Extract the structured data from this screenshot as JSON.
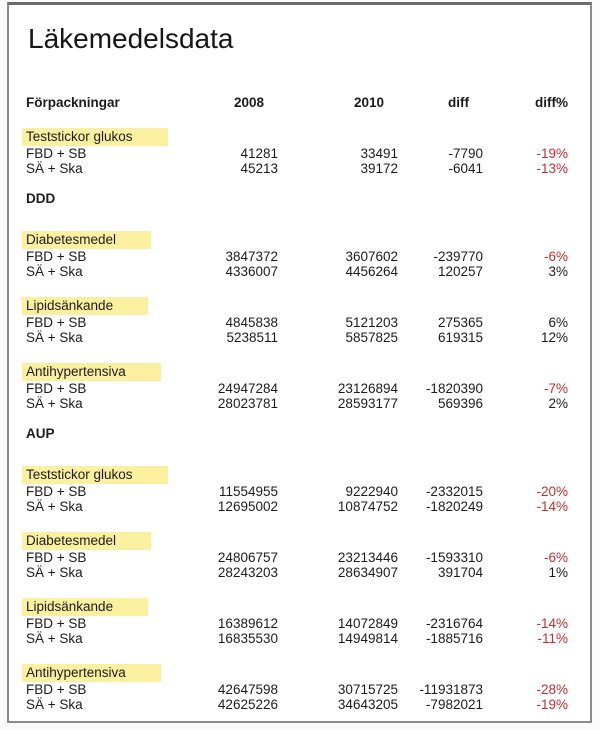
{
  "title": "Läkemedelsdata",
  "columns": {
    "category": "Förpackningar",
    "y2008": "2008",
    "y2010": "2010",
    "diff": "diff",
    "diffpct": "diff%"
  },
  "colors": {
    "highlight_yellow": "#FAF0A0",
    "negative_red": "#C22F32",
    "text": "#1C1C1C",
    "frame_border": "#8A8A8A"
  },
  "sections": [
    {
      "heading": "",
      "groups": [
        {
          "label": "Teststickor glukos",
          "rows": [
            {
              "label": "FBD + SB",
              "y2008": "41281",
              "y2010": "33491",
              "diff": "-7790",
              "diffpct": "-19%"
            },
            {
              "label": "SÄ + Ska",
              "y2008": "45213",
              "y2010": "39172",
              "diff": "-6041",
              "diffpct": "-13%"
            }
          ]
        }
      ]
    },
    {
      "heading": "DDD",
      "groups": [
        {
          "label": "Diabetesmedel",
          "rows": [
            {
              "label": "FBD + SB",
              "y2008": "3847372",
              "y2010": "3607602",
              "diff": "-239770",
              "diffpct": "-6%"
            },
            {
              "label": "SÄ + Ska",
              "y2008": "4336007",
              "y2010": "4456264",
              "diff": "120257",
              "diffpct": "3%"
            }
          ]
        },
        {
          "label": "Lipidsänkande",
          "rows": [
            {
              "label": "FBD + SB",
              "y2008": "4845838",
              "y2010": "5121203",
              "diff": "275365",
              "diffpct": "6%"
            },
            {
              "label": "SÄ + Ska",
              "y2008": "5238511",
              "y2010": "5857825",
              "diff": "619315",
              "diffpct": "12%"
            }
          ]
        },
        {
          "label": "Antihypertensiva",
          "rows": [
            {
              "label": "FBD + SB",
              "y2008": "24947284",
              "y2010": "23126894",
              "diff": "-1820390",
              "diffpct": "-7%"
            },
            {
              "label": "SÄ + Ska",
              "y2008": "28023781",
              "y2010": "28593177",
              "diff": "569396",
              "diffpct": "2%"
            }
          ]
        }
      ]
    },
    {
      "heading": "AUP",
      "groups": [
        {
          "label": "Teststickor glukos",
          "rows": [
            {
              "label": "FBD + SB",
              "y2008": "11554955",
              "y2010": "9222940",
              "diff": "-2332015",
              "diffpct": "-20%"
            },
            {
              "label": "SÄ + Ska",
              "y2008": "12695002",
              "y2010": "10874752",
              "diff": "-1820249",
              "diffpct": "-14%"
            }
          ]
        },
        {
          "label": "Diabetesmedel",
          "rows": [
            {
              "label": "FBD + SB",
              "y2008": "24806757",
              "y2010": "23213446",
              "diff": "-1593310",
              "diffpct": "-6%"
            },
            {
              "label": "SÄ + Ska",
              "y2008": "28243203",
              "y2010": "28634907",
              "diff": "391704",
              "diffpct": "1%"
            }
          ]
        },
        {
          "label": "Lipidsänkande",
          "rows": [
            {
              "label": "FBD + SB",
              "y2008": "16389612",
              "y2010": "14072849",
              "diff": "-2316764",
              "diffpct": "-14%"
            },
            {
              "label": "SÄ + Ska",
              "y2008": "16835530",
              "y2010": "14949814",
              "diff": "-1885716",
              "diffpct": "-11%"
            }
          ]
        },
        {
          "label": "Antihypertensiva",
          "rows": [
            {
              "label": "FBD + SB",
              "y2008": "42647598",
              "y2010": "30715725",
              "diff": "-11931873",
              "diffpct": "-28%"
            },
            {
              "label": "SÄ + Ska",
              "y2008": "42625226",
              "y2010": "34643205",
              "diff": "-7982021",
              "diffpct": "-19%"
            }
          ]
        }
      ]
    }
  ]
}
